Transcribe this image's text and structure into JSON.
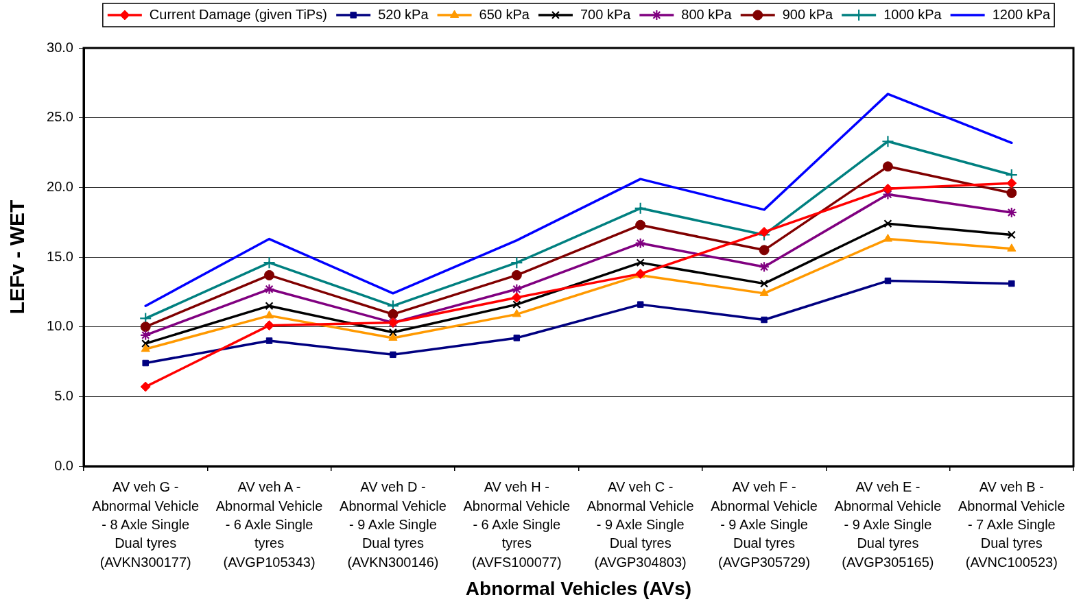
{
  "chart_data": {
    "type": "line",
    "xlabel": "Abnormal Vehicles (AVs)",
    "ylabel": "LEFv - WET",
    "categories": [
      "AV veh G - Abnormal Vehicle - 8 Axle Single Dual tyres (AVKN300177)",
      "AV veh A - Abnormal Vehicle - 6 Axle Single tyres (AVGP105343)",
      "AV veh D - Abnormal Vehicle - 9 Axle Single Dual tyres (AVKN300146)",
      "AV veh H - Abnormal Vehicle - 6 Axle Single tyres (AVFS100077)",
      "AV veh C - Abnormal Vehicle - 9 Axle Single Dual tyres (AVGP304803)",
      "AV veh F - Abnormal Vehicle - 9 Axle Single Dual tyres (AVGP305729)",
      "AV veh E - Abnormal Vehicle - 9 Axle Single Dual tyres (AVGP305165)",
      "AV veh B - Abnormal Vehicle - 7 Axle Single Dual tyres (AVNC100523)"
    ],
    "ylim": [
      0,
      30
    ],
    "yticks": [
      {
        "value": 0,
        "label": "0.0"
      },
      {
        "value": 5,
        "label": "5.0"
      },
      {
        "value": 10,
        "label": "10.0"
      },
      {
        "value": 15,
        "label": "15.0"
      },
      {
        "value": 20,
        "label": "20.0"
      },
      {
        "value": 25,
        "label": "25.0"
      },
      {
        "value": 30,
        "label": "30.0"
      }
    ],
    "grid": "y",
    "legend": "top",
    "line_style": "solid",
    "series": [
      {
        "name": "Current Damage (given TiPs)",
        "color": "#ff0000",
        "marker": "diamond",
        "values": [
          5.7,
          10.1,
          10.3,
          12.1,
          13.8,
          16.8,
          19.9,
          20.3
        ]
      },
      {
        "name": "520 kPa",
        "color": "#000080",
        "marker": "square",
        "values": [
          7.4,
          9.0,
          8.0,
          9.2,
          11.6,
          10.5,
          13.3,
          13.1
        ]
      },
      {
        "name": "650 kPa",
        "color": "#ff9900",
        "marker": "triangle",
        "values": [
          8.4,
          10.8,
          9.2,
          10.9,
          13.7,
          12.4,
          16.3,
          15.6
        ]
      },
      {
        "name": "700 kPa",
        "color": "#000000",
        "marker": "x",
        "values": [
          8.8,
          11.5,
          9.6,
          11.6,
          14.6,
          13.1,
          17.4,
          16.6
        ]
      },
      {
        "name": "800 kPa",
        "color": "#800080",
        "marker": "cross",
        "values": [
          9.4,
          12.7,
          10.3,
          12.7,
          16.0,
          14.3,
          19.5,
          18.2
        ]
      },
      {
        "name": "900 kPa",
        "color": "#800000",
        "marker": "circle",
        "values": [
          10.0,
          13.7,
          10.9,
          13.7,
          17.3,
          15.5,
          21.5,
          19.6
        ]
      },
      {
        "name": "1000 kPa",
        "color": "#008080",
        "marker": "plus",
        "values": [
          10.6,
          14.6,
          11.5,
          14.6,
          18.5,
          16.6,
          23.3,
          20.9
        ]
      },
      {
        "name": "1200 kPa",
        "color": "#0000ff",
        "marker": "none",
        "values": [
          11.5,
          16.3,
          12.4,
          16.2,
          20.6,
          18.4,
          26.7,
          23.2
        ]
      }
    ]
  }
}
